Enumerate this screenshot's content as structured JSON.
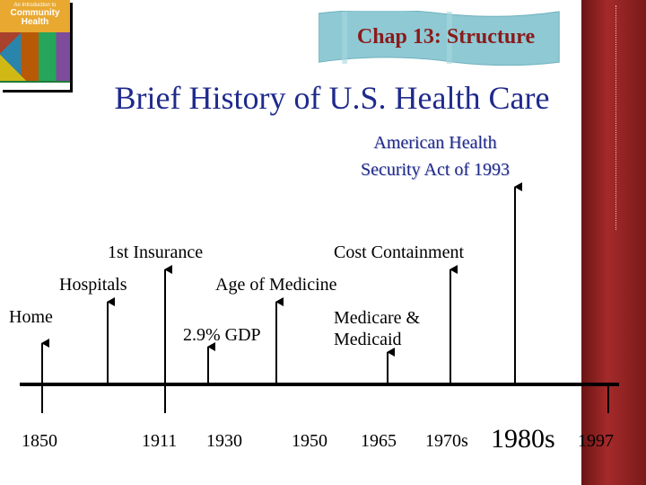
{
  "cover": {
    "line1": "An Introduction to",
    "line2": "Community",
    "line3": "Health"
  },
  "banner": {
    "text": "Chap 13: Structure"
  },
  "title": "Brief History of U.S. Health Care",
  "act": {
    "line1": "American Health",
    "line2": "Security Act of 1993"
  },
  "events": {
    "home": "Home",
    "hospitals": "Hospitals",
    "first_insurance": "1st Insurance",
    "age_of_medicine": "Age of Medicine",
    "gdp": "2.9% GDP",
    "medicare_line1": "Medicare &",
    "medicare_line2": "Medicaid",
    "cost_containment": "Cost Containment"
  },
  "years": [
    "1850",
    "1911",
    "1930",
    "1950",
    "1965",
    "1970s",
    "1980s",
    "1997"
  ],
  "colors": {
    "title": "#1f2a8c",
    "banner_text": "#8b1a1a",
    "banner_bg": "#8ec9d4",
    "side_border": "#a52a2a"
  }
}
